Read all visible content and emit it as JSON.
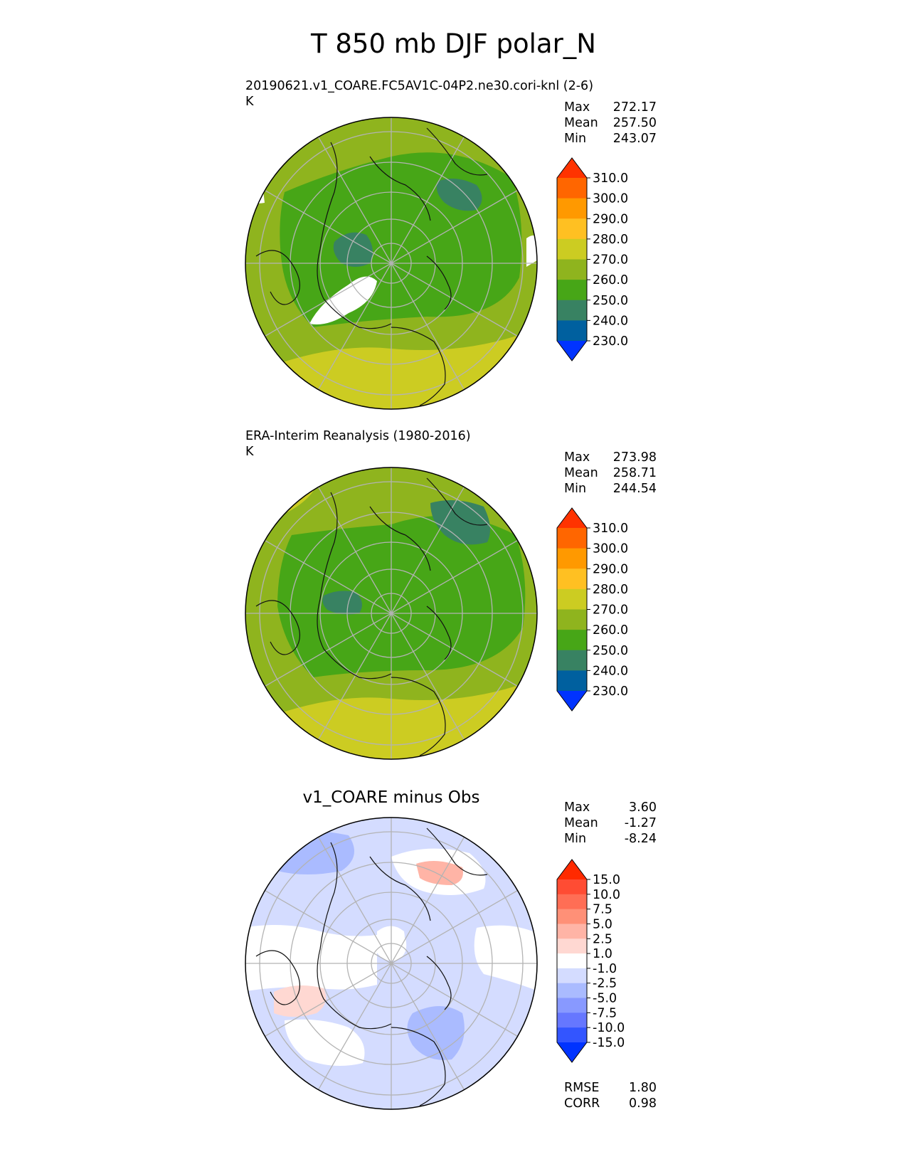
{
  "figure": {
    "title": "T 850 mb DJF polar_N"
  },
  "chart_data": [
    {
      "type": "heatmap",
      "projection": "north polar stereographic",
      "title": "20190621.v1_COARE.FC5AV1C-04P2.ne30.cori-knl (2-6)",
      "units": "K",
      "stats": {
        "max_label": "Max",
        "max": "272.17",
        "mean_label": "Mean",
        "mean": "257.50",
        "min_label": "Min",
        "min": "243.07"
      },
      "colorbar": {
        "levels": [
          "310.0",
          "300.0",
          "290.0",
          "280.0",
          "270.0",
          "260.0",
          "250.0",
          "240.0",
          "230.0"
        ],
        "colors": [
          "#ff3300",
          "#ff6600",
          "#ff9900",
          "#ffc022",
          "#cccc22",
          "#8fb41e",
          "#47a617",
          "#388262",
          "#00609f",
          "#0033ff"
        ]
      }
    },
    {
      "type": "heatmap",
      "projection": "north polar stereographic",
      "title": "ERA-Interim Reanalysis (1980-2016)",
      "units": "K",
      "stats": {
        "max_label": "Max",
        "max": "273.98",
        "mean_label": "Mean",
        "mean": "258.71",
        "min_label": "Min",
        "min": "244.54"
      },
      "colorbar": {
        "levels": [
          "310.0",
          "300.0",
          "290.0",
          "280.0",
          "270.0",
          "260.0",
          "250.0",
          "240.0",
          "230.0"
        ],
        "colors": [
          "#ff3300",
          "#ff6600",
          "#ff9900",
          "#ffc022",
          "#cccc22",
          "#8fb41e",
          "#47a617",
          "#388262",
          "#00609f",
          "#0033ff"
        ]
      }
    },
    {
      "type": "heatmap",
      "projection": "north polar stereographic",
      "title": "v1_COARE minus Obs",
      "stats": {
        "max_label": "Max",
        "max": "3.60",
        "mean_label": "Mean",
        "mean": "-1.27",
        "min_label": "Min",
        "min": "-8.24",
        "rmse_label": "RMSE",
        "rmse": "1.80",
        "corr_label": "CORR",
        "corr": "0.98"
      },
      "colorbar": {
        "levels": [
          "15.0",
          "10.0",
          "7.5",
          "5.0",
          "2.5",
          "1.0",
          "-1.0",
          "-2.5",
          "-5.0",
          "-7.5",
          "-10.0",
          "-15.0"
        ],
        "colors": [
          "#ff2a00",
          "#ff4c33",
          "#ff6e55",
          "#ff9077",
          "#ffb4a6",
          "#ffd8d2",
          "#ffffff",
          "#d4dcff",
          "#aabbff",
          "#8899ff",
          "#6677ff",
          "#3355ff",
          "#0033ff"
        ]
      }
    }
  ]
}
